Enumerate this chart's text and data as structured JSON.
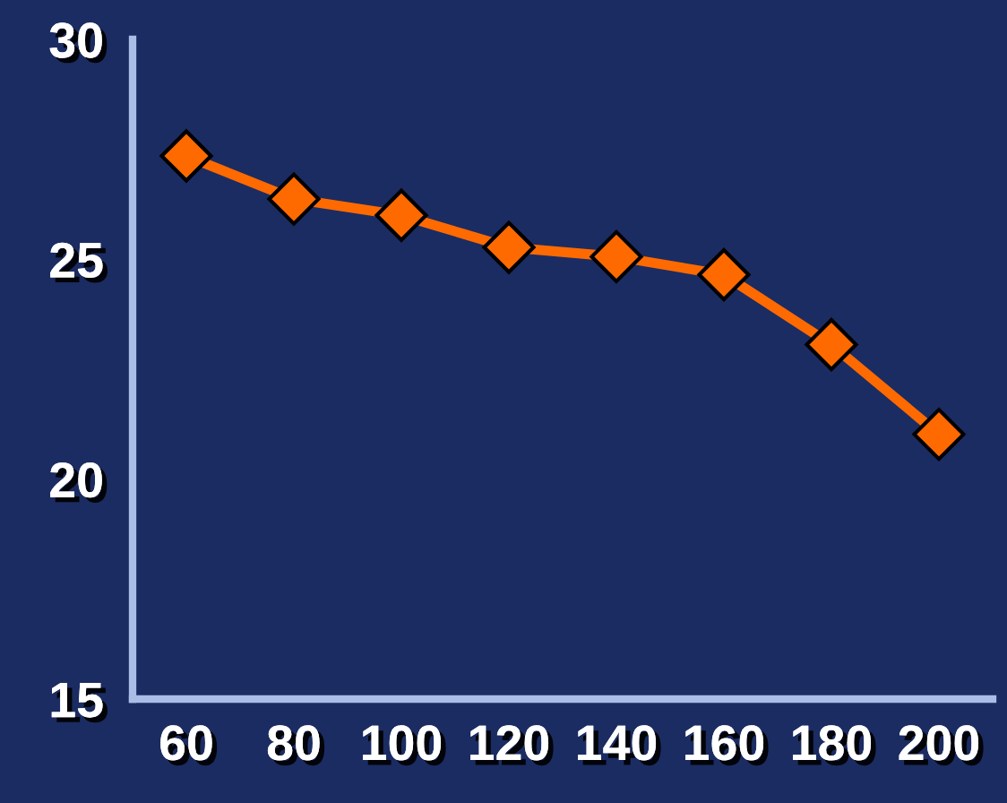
{
  "chart_data": {
    "type": "line",
    "categories": [
      "60",
      "80",
      "100",
      "120",
      "140",
      "160",
      "180",
      "200"
    ],
    "series": [
      {
        "color": "#ff6a00",
        "values": [
          27.35,
          26.37,
          26.0,
          25.27,
          25.06,
          24.65,
          23.06,
          21.02
        ]
      }
    ],
    "ylim": [
      15,
      30
    ],
    "yticks": [
      15,
      20,
      25,
      30
    ],
    "grid": false,
    "legend": false,
    "marker": "diamond",
    "line_style": "solid"
  }
}
